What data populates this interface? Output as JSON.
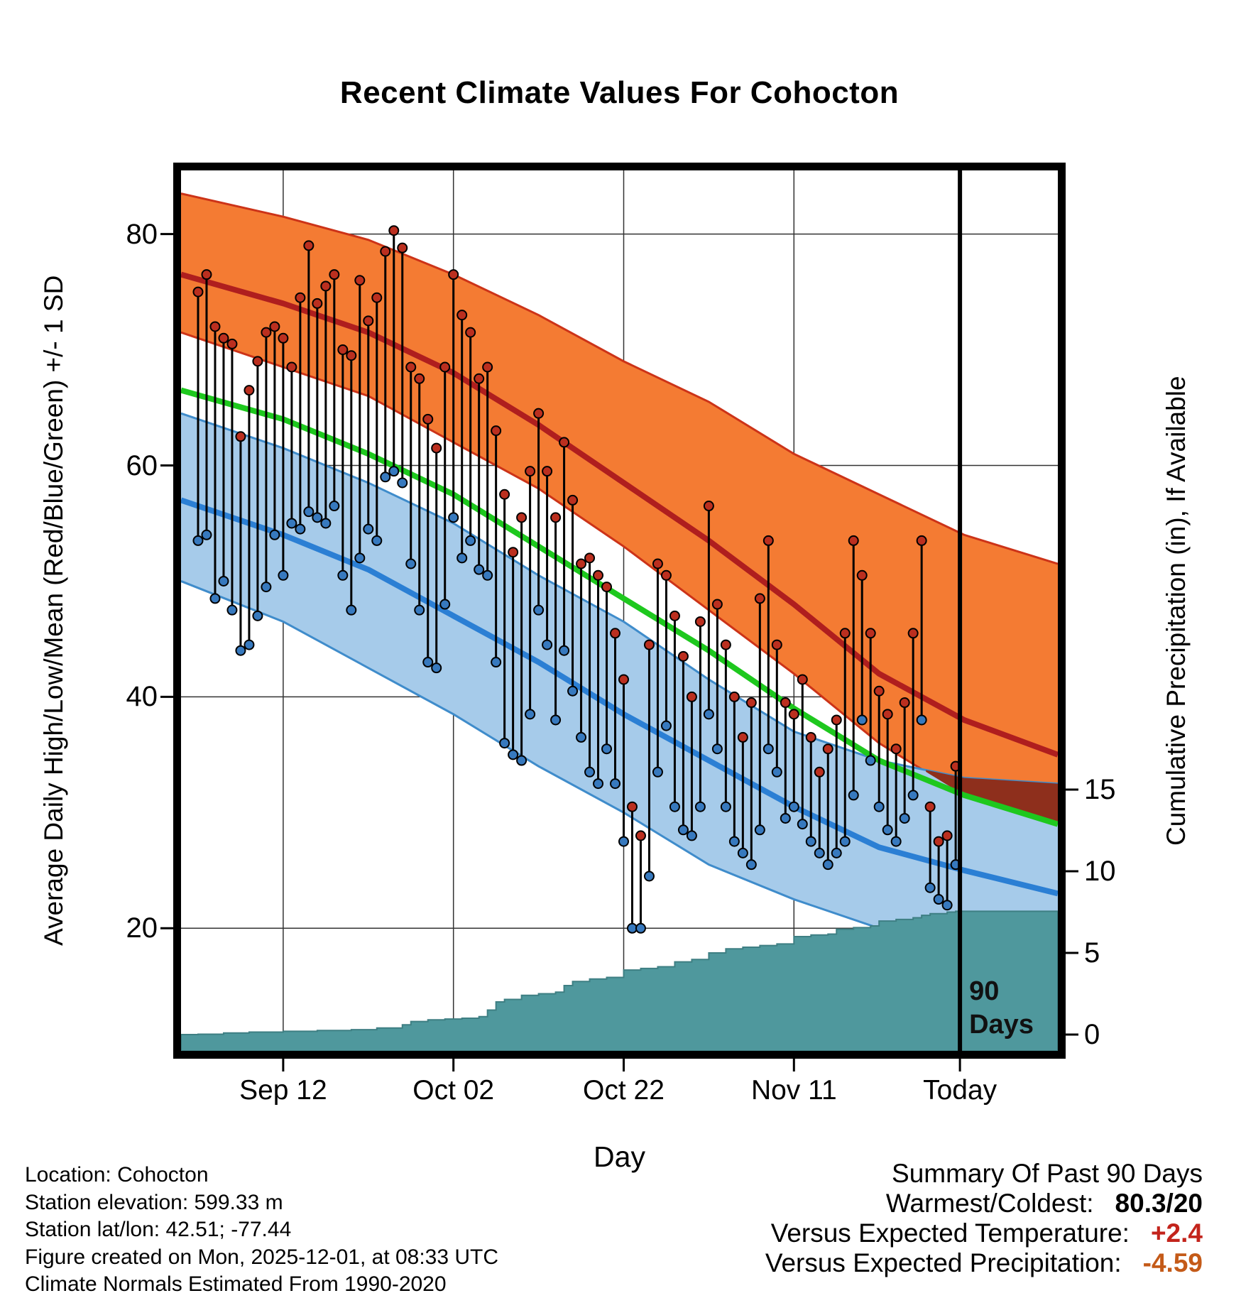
{
  "title": "Recent Climate Values For Cohocton",
  "axes": {
    "left_label": "Average Daily High/Low/Mean (Red/Blue/Green) +/- 1 SD",
    "right_label": "Cumulative Precipitation (in), If Available",
    "x_label": "Day",
    "x_ticks": [
      {
        "day": 10,
        "label": "Sep 12"
      },
      {
        "day": 30,
        "label": "Oct 02"
      },
      {
        "day": 50,
        "label": "Oct 22"
      },
      {
        "day": 70,
        "label": "Nov 11"
      },
      {
        "day": 89.5,
        "label": "Today"
      }
    ],
    "y_ticks_temp": [
      20,
      40,
      60,
      80
    ],
    "y_ticks_precip": [
      0,
      5,
      10,
      15
    ]
  },
  "annotations": {
    "marker_top": "90",
    "marker_bottom": "Days"
  },
  "chart_data": {
    "type": "line",
    "xlim": [
      -2,
      101
    ],
    "ylim_temp": [
      9.4,
      85.5
    ],
    "ylim_precip": [
      0,
      15
    ],
    "today_day": 89.5,
    "normals_days": [
      -2,
      10,
      20,
      30,
      40,
      50,
      60,
      70,
      80,
      90,
      101
    ],
    "normals": {
      "high_plus_sd": [
        83.5,
        81.5,
        79.5,
        76.5,
        73,
        69,
        65.5,
        61,
        57.5,
        54,
        51.5
      ],
      "high_mean": [
        76.5,
        74,
        71.5,
        68,
        63.5,
        58.5,
        53.5,
        48,
        42,
        38,
        35
      ],
      "high_minus_sd": [
        71.5,
        68.5,
        66,
        62,
        58,
        53,
        47.5,
        42,
        36,
        31.5,
        29
      ],
      "mean": [
        66.5,
        64,
        61,
        57.5,
        53,
        48.5,
        44,
        39,
        34.5,
        31.5,
        29
      ],
      "low_plus_sd": [
        64.5,
        61.5,
        58.5,
        55,
        50.5,
        46.5,
        41.5,
        37,
        34.5,
        33,
        32.5
      ],
      "low_mean": [
        57,
        54,
        51,
        47,
        43,
        38.5,
        34.5,
        30.5,
        27,
        25,
        23
      ],
      "low_minus_sd": [
        50,
        46.5,
        42.5,
        38.5,
        34,
        30,
        25.5,
        22.5,
        20,
        18,
        16.5
      ]
    },
    "daily": {
      "start_day": 0,
      "highs": [
        75,
        76.5,
        72,
        71,
        70.5,
        62.5,
        66.5,
        69,
        71.5,
        72,
        71,
        68.5,
        74.5,
        79,
        74,
        75.5,
        76.5,
        70,
        69.5,
        76,
        72.5,
        74.5,
        78.5,
        80.3,
        78.8,
        68.5,
        67.5,
        64,
        61.5,
        68.5,
        76.5,
        73,
        71.5,
        67.5,
        68.5,
        63,
        57.5,
        52.5,
        55.5,
        59.5,
        64.5,
        59.5,
        55.5,
        62,
        57,
        51.5,
        52,
        50.5,
        49.5,
        45.5,
        41.5,
        30.5,
        28,
        44.5,
        51.5,
        50.5,
        47,
        43.5,
        40,
        46.5,
        56.5,
        48,
        44.5,
        40,
        36.5,
        39.5,
        48.5,
        53.5,
        44.5,
        39.5,
        38.5,
        41.5,
        36.5,
        33.5,
        35.5,
        38,
        45.5,
        53.5,
        50.5,
        45.5,
        40.5,
        38.5,
        35.5,
        39.5,
        45.5,
        53.5,
        30.5,
        27.5,
        28,
        34
      ],
      "lows": [
        53.5,
        54,
        48.5,
        50,
        47.5,
        44,
        44.5,
        47,
        49.5,
        54,
        50.5,
        55,
        54.5,
        56,
        55.5,
        55,
        56.5,
        50.5,
        47.5,
        52,
        54.5,
        53.5,
        59,
        59.5,
        58.5,
        51.5,
        47.5,
        43,
        42.5,
        48,
        55.5,
        52,
        53.5,
        51,
        50.5,
        43,
        36,
        35,
        34.5,
        38.5,
        47.5,
        44.5,
        38,
        44,
        40.5,
        36.5,
        33.5,
        32.5,
        35.5,
        32.5,
        27.5,
        20,
        20,
        24.5,
        33.5,
        37.5,
        30.5,
        28.5,
        28,
        30.5,
        38.5,
        35.5,
        30.5,
        27.5,
        26.5,
        25.5,
        28.5,
        35.5,
        33.5,
        29.5,
        30.5,
        29,
        27.5,
        26.5,
        25.5,
        26.5,
        27.5,
        31.5,
        38,
        34.5,
        30.5,
        28.5,
        27.5,
        29.5,
        31.5,
        38,
        23.5,
        22.5,
        22,
        25.5
      ]
    },
    "precip_cumulative": [
      [
        0,
        0.02
      ],
      [
        3,
        0.1
      ],
      [
        6,
        0.15
      ],
      [
        10,
        0.2
      ],
      [
        14,
        0.25
      ],
      [
        18,
        0.3
      ],
      [
        21,
        0.4
      ],
      [
        24,
        0.6
      ],
      [
        25,
        0.8
      ],
      [
        27,
        0.9
      ],
      [
        29,
        0.95
      ],
      [
        31,
        1.0
      ],
      [
        33,
        1.1
      ],
      [
        34,
        1.5
      ],
      [
        35,
        2.0
      ],
      [
        36,
        2.15
      ],
      [
        38,
        2.4
      ],
      [
        40,
        2.5
      ],
      [
        42,
        2.6
      ],
      [
        43,
        3.0
      ],
      [
        44,
        3.25
      ],
      [
        46,
        3.4
      ],
      [
        48,
        3.5
      ],
      [
        50,
        3.95
      ],
      [
        52,
        4.05
      ],
      [
        54,
        4.15
      ],
      [
        56,
        4.45
      ],
      [
        58,
        4.6
      ],
      [
        60,
        5.0
      ],
      [
        62,
        5.25
      ],
      [
        64,
        5.35
      ],
      [
        66,
        5.45
      ],
      [
        68,
        5.55
      ],
      [
        70,
        6.0
      ],
      [
        72,
        6.1
      ],
      [
        74,
        6.15
      ],
      [
        75,
        6.45
      ],
      [
        77,
        6.55
      ],
      [
        79,
        6.65
      ],
      [
        80,
        6.95
      ],
      [
        82,
        7.05
      ],
      [
        84,
        7.15
      ],
      [
        85,
        7.3
      ],
      [
        86,
        7.4
      ],
      [
        88,
        7.5
      ],
      [
        89,
        7.55
      ],
      [
        101,
        7.55
      ]
    ]
  },
  "colors": {
    "high_band": "#F47B33",
    "high_band_edge": "#CC3318",
    "high_mean_line": "#AF1E1E",
    "mean_line": "#1EC81E",
    "low_band": "#A6CBEA",
    "low_band_edge": "#3F8CCB",
    "low_mean_line": "#2B7FD4",
    "band_overlap": "#8E2F1C",
    "high_dot": "#BB2F1F",
    "low_dot": "#3779BE",
    "bar": "#000000",
    "precip_fill": "#4F989D",
    "precip_edge": "#3E7F83",
    "grid": "#333333",
    "summary_temp_value": "#C3241C",
    "summary_precip_value": "#C45A18"
  },
  "footer": {
    "lines": [
      "Location: Cohocton",
      "Station elevation: 599.33 m",
      "Station lat/lon: 42.51; -77.44",
      "Figure created on Mon, 2025-12-01, at 08:33 UTC",
      "Climate Normals Estimated From 1990-2020"
    ]
  },
  "summary": {
    "title": "Summary Of Past 90 Days",
    "warmest_label": "Warmest/Coldest:",
    "warmest_value": "80.3/20",
    "temp_label": "Versus Expected Temperature:",
    "temp_value": "+2.4",
    "precip_label": "Versus Expected Precipitation:",
    "precip_value": "-4.59"
  }
}
